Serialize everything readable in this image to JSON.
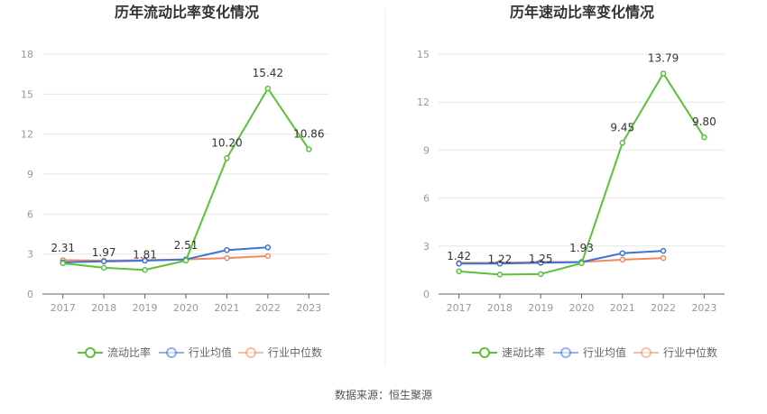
{
  "source_label": "数据来源：恒生聚源",
  "colors": {
    "primary": "#5cc13a",
    "industry_avg": "#3b73d9",
    "industry_median": "#f08a5d",
    "grid": "#e6e6e6",
    "axis": "#666666"
  },
  "chart_data": [
    {
      "type": "line",
      "title": "历年流动比率变化情况",
      "categories": [
        "2017",
        "2018",
        "2019",
        "2020",
        "2021",
        "2022",
        "2023"
      ],
      "ylim": [
        0,
        18
      ],
      "yticks": [
        0,
        3,
        6,
        9,
        12,
        15,
        18
      ],
      "grid": true,
      "legend": "bottom",
      "series": [
        {
          "name": "流动比率",
          "color": "#5cc13a",
          "values": [
            2.31,
            1.97,
            1.81,
            2.51,
            10.2,
            15.42,
            10.86
          ],
          "labels": [
            "2.31",
            "1.97",
            "1.81",
            "2.51",
            "10.20",
            "15.42",
            "10.86"
          ]
        },
        {
          "name": "行业均值",
          "color": "#3b73d9",
          "values": [
            2.38,
            2.45,
            2.5,
            2.6,
            3.3,
            3.5,
            null
          ]
        },
        {
          "name": "行业中位数",
          "color": "#f08a5d",
          "values": [
            2.55,
            2.5,
            2.55,
            2.6,
            2.7,
            2.85,
            null
          ]
        }
      ]
    },
    {
      "type": "line",
      "title": "历年速动比率变化情况",
      "categories": [
        "2017",
        "2018",
        "2019",
        "2020",
        "2021",
        "2022",
        "2023"
      ],
      "ylim": [
        0,
        15
      ],
      "yticks": [
        0,
        3,
        6,
        9,
        12,
        15
      ],
      "grid": true,
      "legend": "bottom",
      "series": [
        {
          "name": "速动比率",
          "color": "#5cc13a",
          "values": [
            1.42,
            1.22,
            1.25,
            1.93,
            9.45,
            13.79,
            9.8
          ],
          "labels": [
            "1.42",
            "1.22",
            "1.25",
            "1.93",
            "9.45",
            "13.79",
            "9.80"
          ]
        },
        {
          "name": "行业均值",
          "color": "#3b73d9",
          "values": [
            1.9,
            1.9,
            1.95,
            2.0,
            2.55,
            2.7,
            null
          ]
        },
        {
          "name": "行业中位数",
          "color": "#f08a5d",
          "values": [
            1.95,
            1.95,
            2.0,
            2.0,
            2.15,
            2.25,
            null
          ]
        }
      ]
    }
  ]
}
